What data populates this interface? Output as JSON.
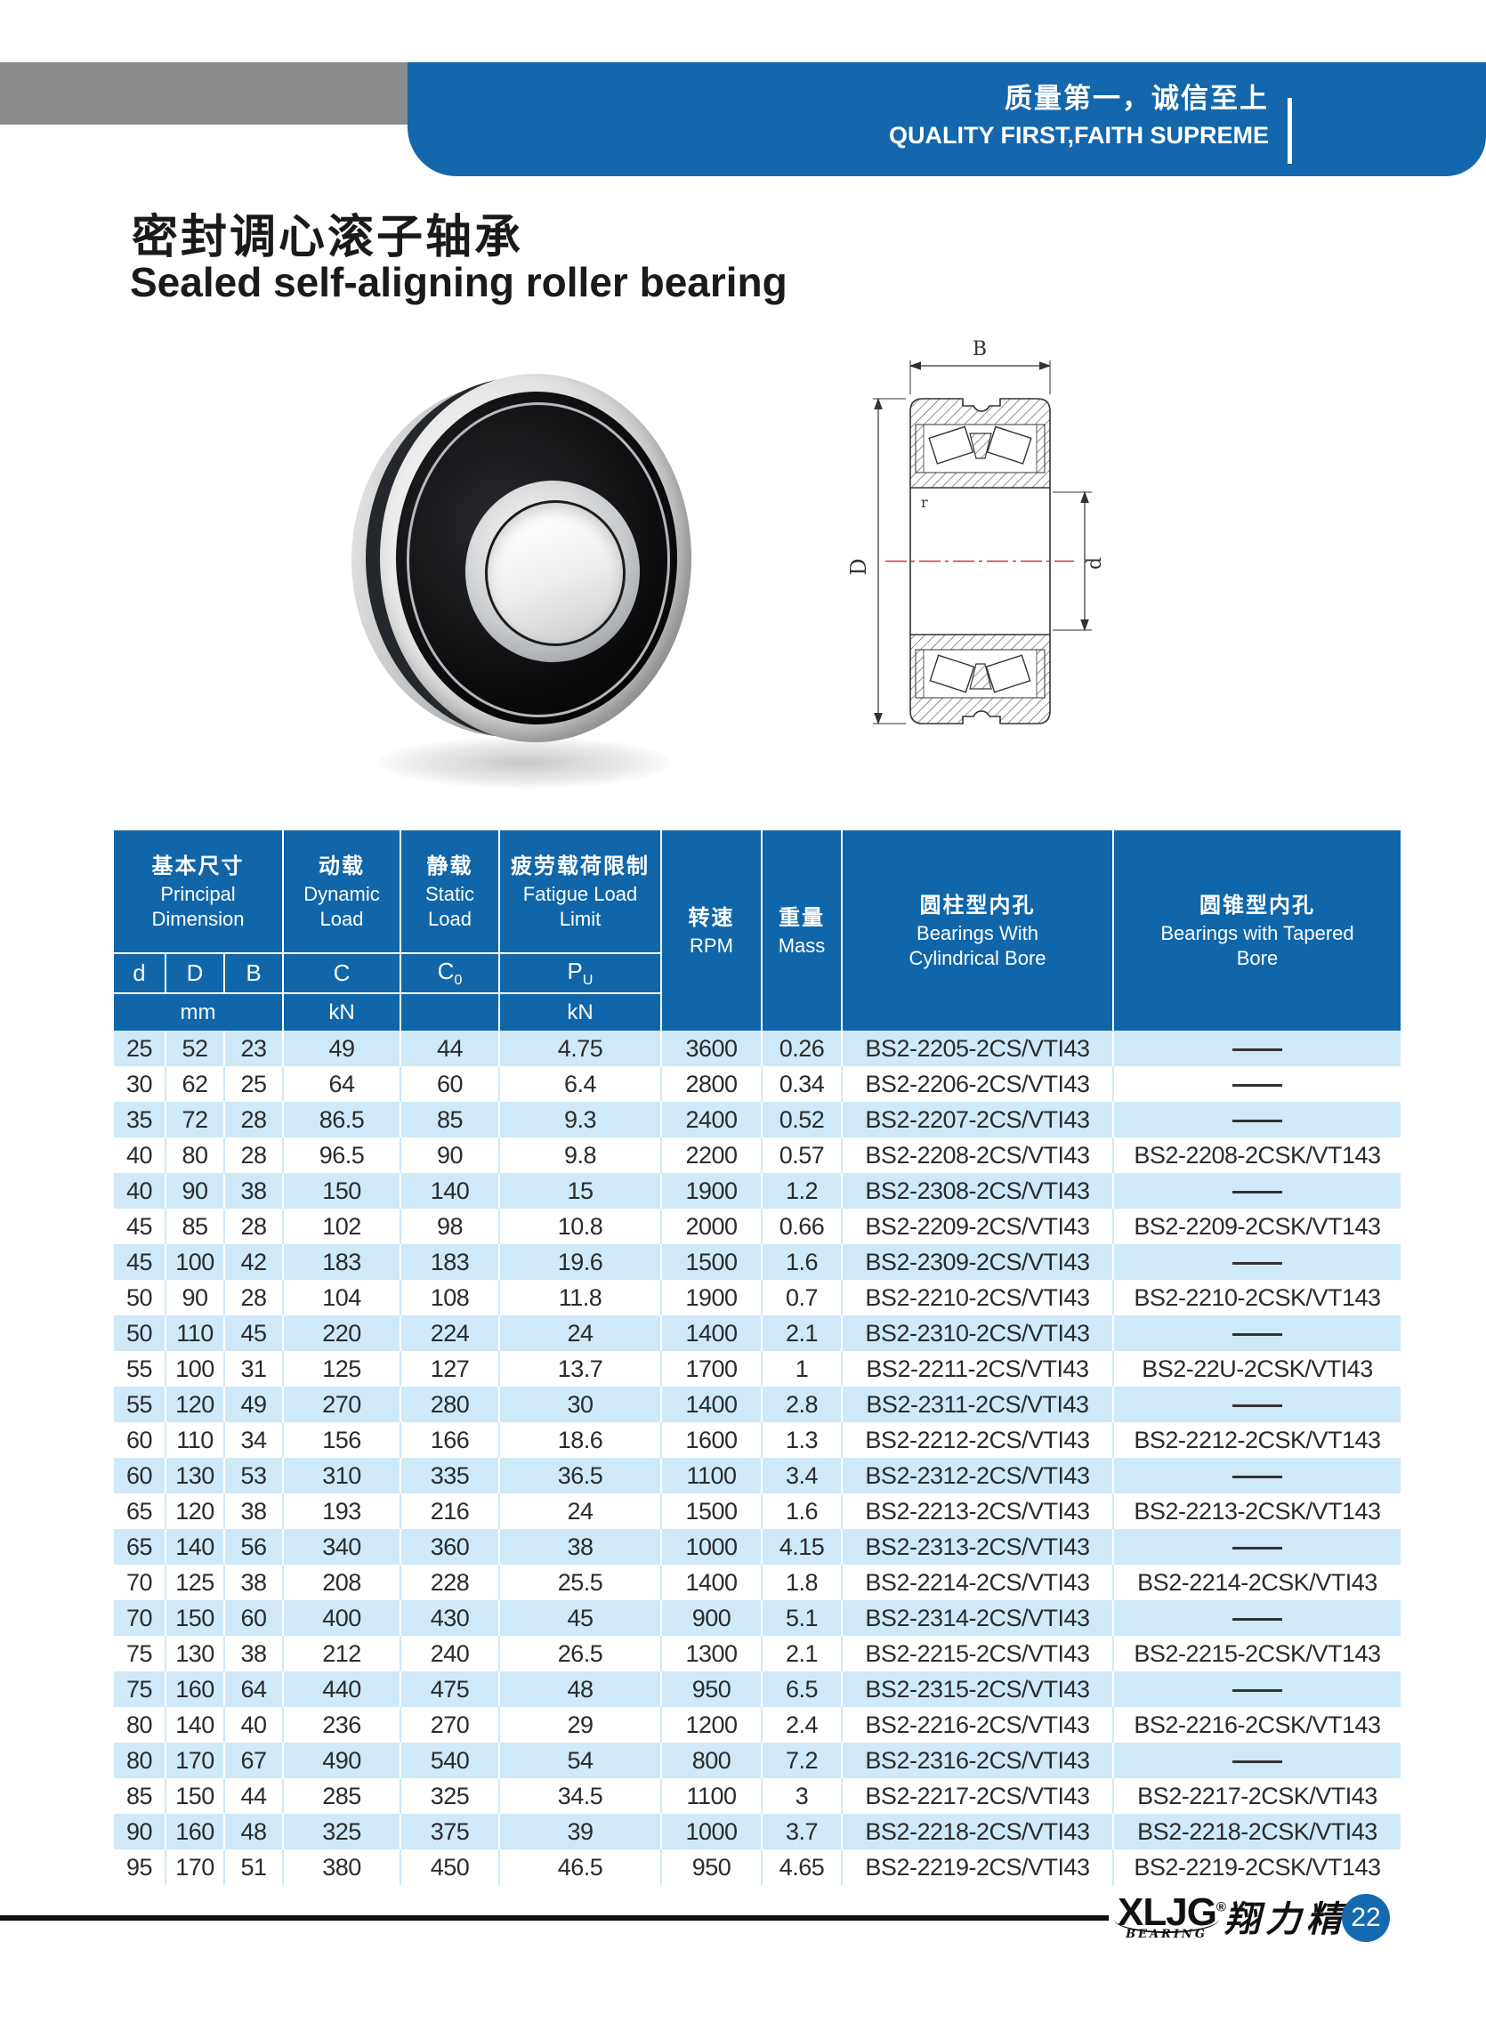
{
  "banner": {
    "slogan_cn": "质量第一，诚信至上",
    "slogan_en": "QUALITY FIRST,FAITH SUPREME"
  },
  "title": {
    "cn": "密封调心滚子轴承",
    "en": "Sealed self-aligning roller bearing"
  },
  "diagram_labels": {
    "width": "B",
    "outer_diameter": "D",
    "bore_diameter": "d",
    "radius": "r"
  },
  "table": {
    "header": {
      "principal": {
        "cn": "基本尺寸",
        "en1": "Principal",
        "en2": "Dimension"
      },
      "dynamic": {
        "cn": "动载",
        "en1": "Dynamic",
        "en2": "Load"
      },
      "static": {
        "cn": "静载",
        "en1": "Static",
        "en2": "Load"
      },
      "fatigue": {
        "cn": "疲劳载荷限制",
        "en1": "Fatigue Load",
        "en2": "Limit"
      },
      "rpm": {
        "cn": "转速",
        "en": "RPM"
      },
      "mass": {
        "cn": "重量",
        "en": "Mass"
      },
      "cylindrical": {
        "cn": "圆柱型内孔",
        "en1": "Bearings With",
        "en2": "Cylindrical Bore"
      },
      "tapered": {
        "cn": "圆锥型内孔",
        "en1": "Bearings with Tapered",
        "en2": "Bore"
      },
      "sub": {
        "d": "d",
        "D": "D",
        "B": "B",
        "C": "C",
        "C0_base": "C",
        "C0_sub": "0",
        "Pu_base": "P",
        "Pu_sub": "U"
      },
      "units": {
        "mm": "mm",
        "kn_dynamic": "kN",
        "kn_fatigue": "kN"
      }
    },
    "rows": [
      [
        "25",
        "52",
        "23",
        "49",
        "44",
        "4.75",
        "3600",
        "0.26",
        "BS2-2205-2CS/VTI43",
        "——"
      ],
      [
        "30",
        "62",
        "25",
        "64",
        "60",
        "6.4",
        "2800",
        "0.34",
        "BS2-2206-2CS/VTI43",
        "——"
      ],
      [
        "35",
        "72",
        "28",
        "86.5",
        "85",
        "9.3",
        "2400",
        "0.52",
        "BS2-2207-2CS/VTI43",
        "——"
      ],
      [
        "40",
        "80",
        "28",
        "96.5",
        "90",
        "9.8",
        "2200",
        "0.57",
        "BS2-2208-2CS/VTI43",
        "BS2-2208-2CSK/VT143"
      ],
      [
        "40",
        "90",
        "38",
        "150",
        "140",
        "15",
        "1900",
        "1.2",
        "BS2-2308-2CS/VTI43",
        "——"
      ],
      [
        "45",
        "85",
        "28",
        "102",
        "98",
        "10.8",
        "2000",
        "0.66",
        "BS2-2209-2CS/VTI43",
        "BS2-2209-2CSK/VT143"
      ],
      [
        "45",
        "100",
        "42",
        "183",
        "183",
        "19.6",
        "1500",
        "1.6",
        "BS2-2309-2CS/VTI43",
        "——"
      ],
      [
        "50",
        "90",
        "28",
        "104",
        "108",
        "11.8",
        "1900",
        "0.7",
        "BS2-2210-2CS/VTI43",
        "BS2-2210-2CSK/VT143"
      ],
      [
        "50",
        "110",
        "45",
        "220",
        "224",
        "24",
        "1400",
        "2.1",
        "BS2-2310-2CS/VTI43",
        "——"
      ],
      [
        "55",
        "100",
        "31",
        "125",
        "127",
        "13.7",
        "1700",
        "1",
        "BS2-2211-2CS/VTI43",
        "BS2-22U-2CSK/VTI43"
      ],
      [
        "55",
        "120",
        "49",
        "270",
        "280",
        "30",
        "1400",
        "2.8",
        "BS2-2311-2CS/VTI43",
        "——"
      ],
      [
        "60",
        "110",
        "34",
        "156",
        "166",
        "18.6",
        "1600",
        "1.3",
        "BS2-2212-2CS/VTI43",
        "BS2-2212-2CSK/VT143"
      ],
      [
        "60",
        "130",
        "53",
        "310",
        "335",
        "36.5",
        "1100",
        "3.4",
        "BS2-2312-2CS/VTI43",
        "——"
      ],
      [
        "65",
        "120",
        "38",
        "193",
        "216",
        "24",
        "1500",
        "1.6",
        "BS2-2213-2CS/VTI43",
        "BS2-2213-2CSK/VT143"
      ],
      [
        "65",
        "140",
        "56",
        "340",
        "360",
        "38",
        "1000",
        "4.15",
        "BS2-2313-2CS/VTI43",
        "——"
      ],
      [
        "70",
        "125",
        "38",
        "208",
        "228",
        "25.5",
        "1400",
        "1.8",
        "BS2-2214-2CS/VTI43",
        "BS2-2214-2CSK/VTI43"
      ],
      [
        "70",
        "150",
        "60",
        "400",
        "430",
        "45",
        "900",
        "5.1",
        "BS2-2314-2CS/VTI43",
        "——"
      ],
      [
        "75",
        "130",
        "38",
        "212",
        "240",
        "26.5",
        "1300",
        "2.1",
        "BS2-2215-2CS/VTI43",
        "BS2-2215-2CSK/VT143"
      ],
      [
        "75",
        "160",
        "64",
        "440",
        "475",
        "48",
        "950",
        "6.5",
        "BS2-2315-2CS/VTI43",
        "——"
      ],
      [
        "80",
        "140",
        "40",
        "236",
        "270",
        "29",
        "1200",
        "2.4",
        "BS2-2216-2CS/VTI43",
        "BS2-2216-2CSK/VT143"
      ],
      [
        "80",
        "170",
        "67",
        "490",
        "540",
        "54",
        "800",
        "7.2",
        "BS2-2316-2CS/VTI43",
        "——"
      ],
      [
        "85",
        "150",
        "44",
        "285",
        "325",
        "34.5",
        "1100",
        "3",
        "BS2-2217-2CS/VTI43",
        "BS2-2217-2CSK/VTI43"
      ],
      [
        "90",
        "160",
        "48",
        "325",
        "375",
        "39",
        "1000",
        "3.7",
        "BS2-2218-2CS/VTI43",
        "BS2-2218-2CSK/VTI43"
      ],
      [
        "95",
        "170",
        "51",
        "380",
        "450",
        "46.5",
        "950",
        "4.65",
        "BS2-2219-2CS/VTI43",
        "BS2-2219-2CSK/VT143"
      ]
    ]
  },
  "footer": {
    "brand": "XLJG",
    "brand_reg": "®",
    "brand_sub": "BEARING",
    "brand_cn": "翔力精工",
    "page_number": "22"
  },
  "colors": {
    "banner_blue": "#1467ad",
    "header_blue": "#1166a9",
    "row_light_blue": "#cfe9f8",
    "gray_bar": "#8a8b8d",
    "centerline_red": "#d63031"
  }
}
